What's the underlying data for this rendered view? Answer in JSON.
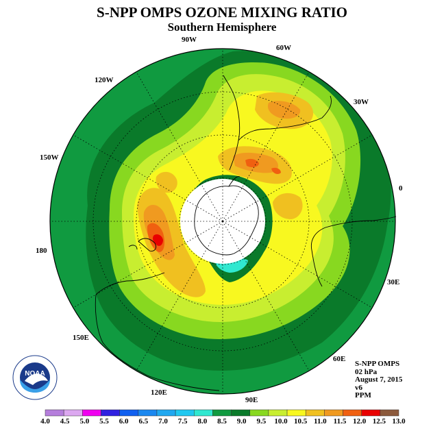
{
  "header": {
    "title": "S-NPP OMPS OZONE MIXING RATIO",
    "subtitle": "Southern Hemisphere"
  },
  "map": {
    "projection": "south polar stereographic",
    "longitude_labels": [
      {
        "name": "lon-0",
        "text": "0"
      },
      {
        "name": "lon-30w",
        "text": "30W"
      },
      {
        "name": "lon-60w",
        "text": "60W"
      },
      {
        "name": "lon-90w",
        "text": "90W"
      },
      {
        "name": "lon-120w",
        "text": "120W"
      },
      {
        "name": "lon-150w",
        "text": "150W"
      },
      {
        "name": "lon-180",
        "text": "180"
      },
      {
        "name": "lon-150e",
        "text": "150E"
      },
      {
        "name": "lon-120e",
        "text": "120E"
      },
      {
        "name": "lon-90e",
        "text": "90E"
      },
      {
        "name": "lon-60e",
        "text": "60E"
      },
      {
        "name": "lon-30e",
        "text": "30E"
      }
    ],
    "polar_no_data_color": "#ffffff",
    "land_outline_color": "#000000"
  },
  "info": {
    "instrument": "S-NPP OMPS",
    "level": "02 hPa",
    "date": "August 7, 2015",
    "version": "v6",
    "units": "PPM"
  },
  "colorbar": {
    "ticks": [
      "4.0",
      "4.5",
      "5.0",
      "5.5",
      "6.0",
      "6.5",
      "7.0",
      "7.5",
      "8.0",
      "8.5",
      "9.0",
      "9.5",
      "10.0",
      "10.5",
      "11.0",
      "11.5",
      "12.0",
      "12.5",
      "13.0"
    ],
    "colors": [
      "#b57edc",
      "#dca8f0",
      "#f000f0",
      "#3020e0",
      "#1060f0",
      "#1a88f0",
      "#20a8f0",
      "#20c8f0",
      "#30e8d0",
      "#109a40",
      "#0a7a2a",
      "#88d820",
      "#c8ee30",
      "#f8f820",
      "#f0c020",
      "#f09a20",
      "#f06010",
      "#e80000",
      "#8c5a3c"
    ]
  },
  "logo": {
    "text": "NOAA",
    "ring_text": "NATIONAL OCEANIC AND ATMOSPHERIC ADMINISTRATION · U.S. DEPARTMENT OF COMMERCE"
  }
}
